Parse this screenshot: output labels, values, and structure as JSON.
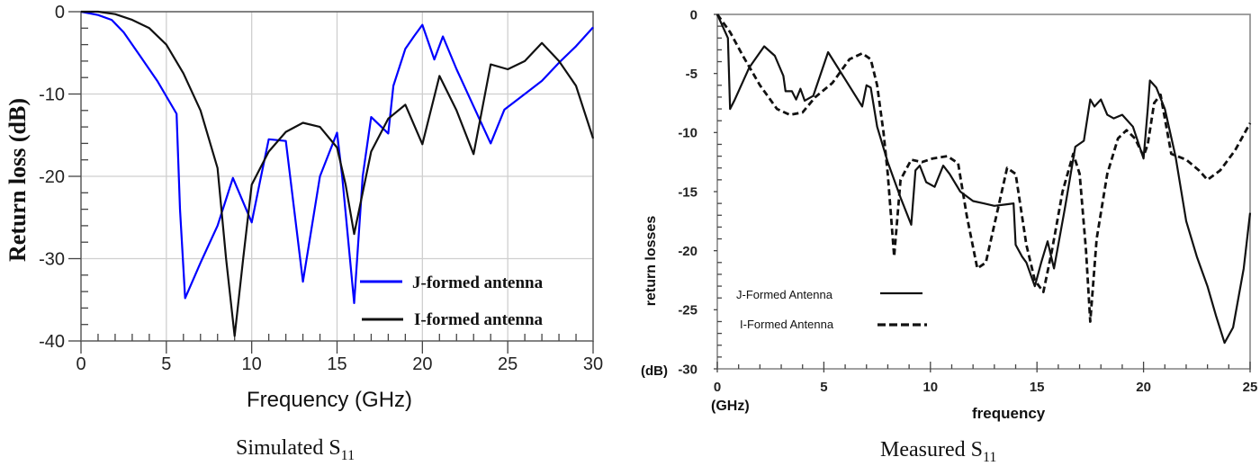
{
  "captions": {
    "left_main": "Simulated S",
    "left_sub": "11",
    "right_main": "Measured S",
    "right_sub": "11"
  },
  "chart_data": [
    {
      "type": "line",
      "title": "Simulated S11",
      "xlabel": "Frequency (GHz)",
      "ylabel": "Return loss (dB)",
      "xlim": [
        0,
        30
      ],
      "ylim": [
        -40,
        0
      ],
      "xticks": [
        0,
        5,
        10,
        15,
        20,
        25,
        30
      ],
      "yticks": [
        0,
        -10,
        -20,
        -30,
        -40
      ],
      "grid": true,
      "legend_position": "lower right",
      "series": [
        {
          "name": "J-formed antenna",
          "color": "#0000ff",
          "style": "solid",
          "x": [
            0,
            1,
            1.8,
            2.5,
            3.5,
            4.5,
            5.6,
            5.8,
            6.1,
            7,
            8,
            8.9,
            10,
            10.5,
            11,
            12,
            13,
            14,
            15,
            15.3,
            16,
            16.5,
            17,
            18,
            18.3,
            19,
            19.5,
            20,
            20.7,
            21.2,
            22,
            23,
            24,
            24.8,
            26,
            27,
            28,
            29,
            30
          ],
          "y": [
            0,
            -0.4,
            -1,
            -2.5,
            -5.5,
            -8.5,
            -12.4,
            -24,
            -34.8,
            -30.5,
            -26,
            -20.2,
            -25.6,
            -20.5,
            -15.5,
            -15.7,
            -32.8,
            -20,
            -14.7,
            -20,
            -35.4,
            -20,
            -12.8,
            -14.8,
            -9,
            -4.5,
            -3,
            -1.6,
            -5.8,
            -3,
            -7,
            -11.5,
            -16,
            -11.9,
            -10,
            -8.4,
            -6.2,
            -4.2,
            -1.9
          ]
        },
        {
          "name": "I-formed antenna",
          "color": "#111111",
          "style": "solid",
          "x": [
            0,
            1,
            2,
            3,
            4,
            5,
            6,
            7,
            8,
            8.5,
            9,
            9.5,
            10,
            11,
            12,
            13,
            14,
            15,
            15.5,
            16,
            17,
            18,
            19,
            20,
            21,
            22,
            23,
            24,
            25,
            26,
            27,
            28,
            29,
            30
          ],
          "y": [
            0,
            0,
            -0.3,
            -1,
            -2,
            -4,
            -7.5,
            -12,
            -19,
            -30,
            -39.4,
            -30,
            -21,
            -17,
            -14.6,
            -13.5,
            -14,
            -16.5,
            -21,
            -27,
            -17,
            -13,
            -11.3,
            -16.1,
            -7.8,
            -12,
            -17.3,
            -6.4,
            -7,
            -6,
            -3.8,
            -6,
            -9,
            -15.4
          ]
        }
      ]
    },
    {
      "type": "line",
      "title": "Measured S11",
      "xlabel": "frequency",
      "xunit": "(GHz)",
      "ylabel": "return losses",
      "yunit": "(dB)",
      "xlim": [
        0,
        25
      ],
      "ylim": [
        -30,
        0
      ],
      "xticks": [
        0,
        5,
        10,
        15,
        20,
        25
      ],
      "yticks": [
        0,
        -5,
        -10,
        -15,
        -20,
        -25,
        -30
      ],
      "grid": false,
      "legend_position": "lower left",
      "series": [
        {
          "name": "J-Formed Antenna",
          "color": "#111111",
          "style": "solid",
          "x": [
            0,
            0.5,
            0.6,
            0.8,
            1.5,
            2.2,
            2.7,
            3.1,
            3.2,
            3.5,
            3.7,
            3.9,
            4.1,
            4.5,
            5.2,
            6.0,
            6.8,
            7.0,
            7.2,
            7.5,
            8.0,
            8.6,
            9.1,
            9.3,
            9.5,
            9.8,
            10.2,
            10.6,
            10.9,
            11.4,
            12,
            12.5,
            13,
            13.5,
            13.9,
            14.0,
            14.3,
            14.5,
            14.9,
            15.2,
            15.5,
            15.8,
            16.3,
            16.8,
            17.2,
            17.5,
            17.7,
            18.0,
            18.3,
            18.6,
            19.0,
            19.5,
            20.0,
            20.2,
            20.3,
            20.6,
            21.0,
            21.5,
            22.0,
            22.5,
            23.0,
            23.4,
            23.8,
            24.2,
            24.7,
            25.0
          ],
          "y": [
            0,
            -2,
            -8,
            -7.3,
            -4.5,
            -2.7,
            -3.5,
            -5.2,
            -6.5,
            -6.5,
            -7.2,
            -6.3,
            -7.3,
            -6.9,
            -3.2,
            -5.5,
            -7.8,
            -6.0,
            -6.2,
            -9.5,
            -12.5,
            -15.5,
            -17.8,
            -13.2,
            -12.8,
            -14.2,
            -14.6,
            -12.8,
            -13.5,
            -15,
            -15.8,
            -16,
            -16.2,
            -16.1,
            -16.0,
            -19.5,
            -20.5,
            -21,
            -23,
            -21,
            -19.2,
            -21.5,
            -16.5,
            -11.2,
            -10.7,
            -7.2,
            -7.8,
            -7.2,
            -8.5,
            -8.8,
            -8.5,
            -9.5,
            -12.2,
            -8.0,
            -5.6,
            -6.2,
            -8.0,
            -12.0,
            -17.5,
            -20.5,
            -23.0,
            -25.5,
            -27.8,
            -26.5,
            -21.5,
            -16.8
          ]
        },
        {
          "name": "I-Formed Antenna",
          "color": "#111111",
          "style": "dashed",
          "x": [
            0,
            0.6,
            1.2,
            2,
            2.8,
            3.4,
            4.0,
            4.6,
            5.4,
            6.2,
            6.8,
            7.2,
            7.5,
            7.8,
            8.0,
            8.3,
            8.6,
            9.1,
            9.6,
            10.1,
            10.8,
            11.3,
            11.7,
            12.2,
            12.6,
            13.1,
            13.6,
            14.0,
            14.5,
            14.9,
            15.3,
            15.7,
            16.2,
            16.7,
            17.0,
            17.3,
            17.5,
            17.8,
            18.3,
            18.8,
            19.2,
            19.6,
            20.0,
            20.2,
            20.5,
            20.8,
            21.3,
            22.0,
            22.6,
            23.0,
            23.6,
            24.3,
            25.0
          ],
          "y": [
            0,
            -1.5,
            -3.5,
            -6.0,
            -8.0,
            -8.5,
            -8.3,
            -7.0,
            -5.8,
            -3.8,
            -3.3,
            -3.8,
            -6.0,
            -10.0,
            -13.5,
            -20.5,
            -14.0,
            -12.3,
            -12.5,
            -12.2,
            -12.0,
            -12.6,
            -17.0,
            -21.5,
            -21.0,
            -17.0,
            -13.0,
            -13.5,
            -19.5,
            -22.5,
            -23.5,
            -20.0,
            -15.0,
            -11.8,
            -13.5,
            -20.0,
            -26.0,
            -19.0,
            -13.5,
            -10.5,
            -9.8,
            -10.5,
            -12.0,
            -11.0,
            -7.5,
            -6.8,
            -11.8,
            -12.3,
            -13.2,
            -14.0,
            -13.2,
            -11.5,
            -9.2
          ]
        }
      ]
    }
  ],
  "left_chart": {
    "ylabel": "Return loss (dB)",
    "xlabel": "Frequency (GHz)",
    "legend": [
      {
        "label": "J-formed antenna",
        "color": "#0000ff"
      },
      {
        "label": "I-formed antenna",
        "color": "#111111"
      }
    ]
  },
  "right_chart": {
    "ylabel": "return losses",
    "yunit": "(dB)",
    "xlabel": "frequency",
    "xunit": "(GHz)",
    "legend": [
      {
        "label": "J-Formed Antenna",
        "style": "solid"
      },
      {
        "label": "I-Formed Antenna",
        "style": "dashed"
      }
    ]
  }
}
